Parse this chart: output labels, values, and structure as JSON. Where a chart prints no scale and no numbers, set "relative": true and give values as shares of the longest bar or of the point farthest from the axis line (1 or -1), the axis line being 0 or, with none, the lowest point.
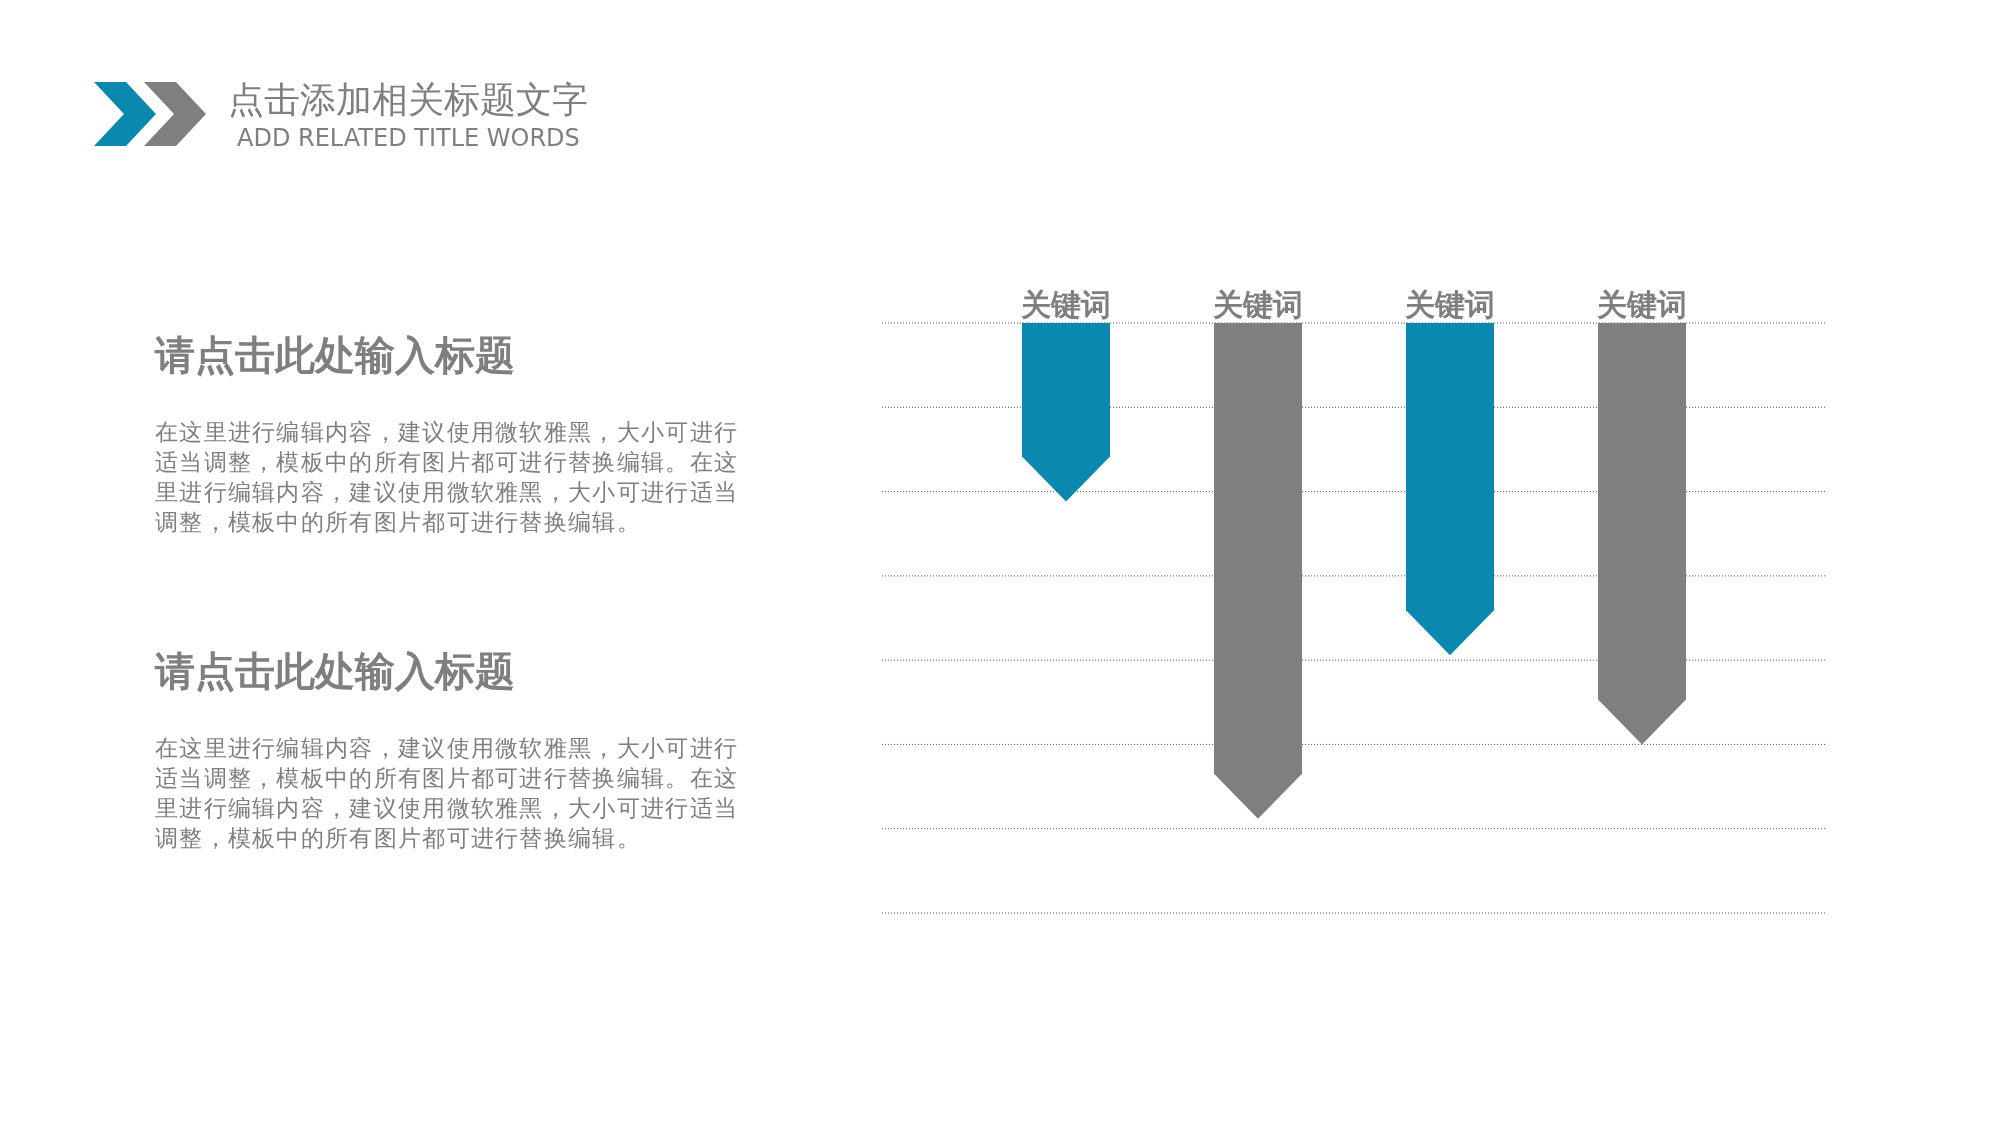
{
  "chart_data": {
    "type": "bar",
    "title": "点击添加相关标题文字",
    "subtitle": "ADD RELATED TITLE WORDS",
    "categories": [
      "关键词",
      "关键词",
      "关键词",
      "关键词"
    ],
    "values": [
      -0.36,
      -1,
      -0.67,
      -0.85
    ],
    "colors": [
      "#0a88b0",
      "#7f7f7f",
      "#0a88b0",
      "#7f7f7f"
    ],
    "relative": true,
    "grid": "y",
    "tick_labels": "x",
    "annotations": [
      "请点击此处输入标题",
      "在这里进行编辑内容，建议使用微软雅黑，大小可进行适当调整，模板中的所有图片都可进行替换编辑。在这里进行编辑内容，建议使用微软雅黑，大小可进行适当调整，模板中的所有图片都可进行替换编辑。",
      "请点击此处输入标题",
      "在这里进行编辑内容，建议使用微软雅黑，大小可进行适当调整，模板中的所有图片都可进行替换编辑。在这里进行编辑内容，建议使用微软雅黑，大小可进行适当调整，模板中的所有图片都可进行替换编辑。"
    ]
  }
}
